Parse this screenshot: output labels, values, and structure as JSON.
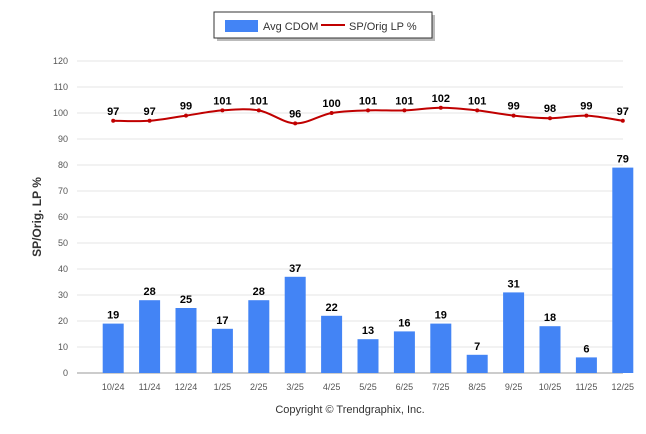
{
  "chart_data": {
    "type": "bar",
    "categories": [
      "10/24",
      "11/24",
      "12/24",
      "1/25",
      "2/25",
      "3/25",
      "4/25",
      "5/25",
      "6/25",
      "7/25",
      "8/25",
      "9/25",
      "10/25",
      "11/25",
      "12/25"
    ],
    "series": [
      {
        "name": "Avg CDOM",
        "type": "bar",
        "color": "#4384f5",
        "values": [
          19,
          28,
          25,
          17,
          28,
          37,
          22,
          13,
          16,
          19,
          7,
          31,
          18,
          6,
          79
        ]
      },
      {
        "name": "SP/Orig LP %",
        "type": "line",
        "color": "#c00000",
        "values": [
          97,
          97,
          99,
          101,
          101,
          96,
          100,
          101,
          101,
          102,
          101,
          99,
          98,
          99,
          97
        ]
      }
    ],
    "ylabel": "SP/Orig. LP %",
    "ylim": [
      0,
      120
    ],
    "yticks": [
      0,
      10,
      20,
      30,
      40,
      50,
      60,
      70,
      80,
      90,
      100,
      110,
      120
    ],
    "grid": true,
    "legend_position": "top-center"
  },
  "footer": {
    "copyright": "Copyright © Trendgraphix, Inc."
  }
}
